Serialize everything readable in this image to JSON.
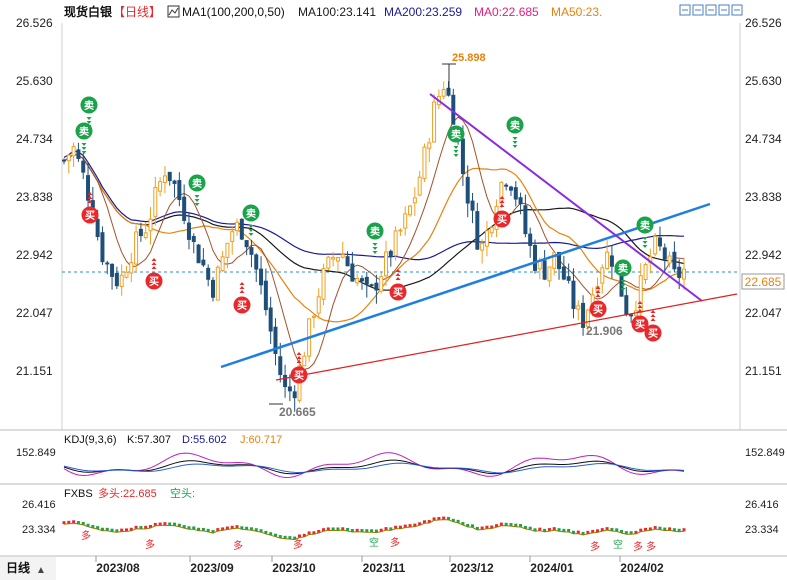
{
  "header": {
    "title": "现货白银",
    "period": "【日线】",
    "ma_params": "MA1(100,200,0,50)",
    "ma_items": [
      {
        "text": "MA100:23.141",
        "color": "#1a1a1a"
      },
      {
        "text": "MA200:23.259",
        "color": "#1a1a99"
      },
      {
        "text": "MA0:22.685",
        "color": "#e0207f"
      },
      {
        "text": "MA50:23.",
        "color": "#e8820c"
      }
    ],
    "tool_icons": [
      "zoom-in-icon",
      "zoom-out-icon",
      "expand-icon",
      "restore-icon",
      "close-icon"
    ]
  },
  "price_axis": {
    "ticks": [
      "26.526",
      "25.630",
      "24.734",
      "23.838",
      "22.942",
      "22.047",
      "21.151"
    ],
    "current": "22.685"
  },
  "annotations": {
    "high_label": "25.898",
    "low_label": "20.665",
    "mid_low_label": "21.906",
    "buy_char": "买",
    "sell_char": "卖"
  },
  "kdj": {
    "label": "KDJ(9,3,6)",
    "k": "K:57.307",
    "d": "D:55.602",
    "j": "J:60.717",
    "axis_tick": "152.849"
  },
  "fxbs": {
    "label": "FXBS",
    "long": "多头:22.685",
    "short": "空头:",
    "axis_ticks": [
      "26.416",
      "23.334"
    ],
    "long_char": "多",
    "short_char": "空"
  },
  "footer": {
    "period_label": "日线",
    "months": [
      "2023/08",
      "2023/09",
      "2023/10",
      "2023/11",
      "2023/12",
      "2024/01",
      "2024/02"
    ]
  },
  "colors": {
    "up": "#e8282b",
    "down": "#1aa34a",
    "candle_up": "#f0a020",
    "candle_down": "#1e4f7a",
    "trend_blue": "#1e7fe0",
    "trend_purple": "#8a2be2",
    "trend_red": "#d22",
    "ma_black": "#1a1a1a",
    "ma_navy": "#1a1a99",
    "ma_orange": "#e8820c"
  },
  "chart_data": [
    {
      "type": "candlestick",
      "title": "现货白银 【日线】",
      "y_axis_ticks": [
        26.526,
        25.63,
        24.734,
        23.838,
        22.942,
        22.047,
        21.151
      ],
      "ylim": [
        20.3,
        26.6
      ],
      "x_axis_ticks": [
        "2023/08",
        "2023/09",
        "2023/10",
        "2023/11",
        "2023/12",
        "2024/01",
        "2024/02"
      ],
      "series": [
        {
          "name": "MA100",
          "value": 23.141
        },
        {
          "name": "MA200",
          "value": 23.259
        },
        {
          "name": "MA0",
          "value": 22.685
        },
        {
          "name": "MA50",
          "value": 23.0
        }
      ],
      "close_path": [
        24.4,
        24.6,
        24.2,
        23.7,
        23.0,
        22.7,
        22.5,
        22.9,
        23.2,
        23.4,
        23.9,
        24.3,
        24.0,
        23.6,
        23.1,
        22.8,
        22.4,
        22.8,
        23.3,
        23.4,
        23.1,
        22.6,
        22.0,
        21.3,
        20.8,
        20.9,
        21.5,
        22.1,
        22.6,
        22.9,
        23.0,
        22.7,
        22.5,
        22.3,
        22.6,
        22.9,
        23.2,
        23.5,
        23.9,
        24.5,
        25.2,
        25.6,
        25.2,
        24.3,
        23.6,
        23.0,
        23.4,
        24.0,
        24.2,
        23.8,
        23.2,
        22.8,
        22.7,
        22.9,
        22.6,
        22.2,
        21.9,
        22.3,
        22.8,
        23.0,
        22.5,
        22.0,
        22.3,
        22.8,
        23.1,
        22.9,
        22.6,
        22.7
      ],
      "markers": {
        "high": 25.898,
        "low": 20.665,
        "swing_low": 21.906,
        "last": 22.685
      }
    },
    {
      "type": "line",
      "title": "KDJ(9,3,6)",
      "series": [
        {
          "name": "K",
          "value": 57.307
        },
        {
          "name": "D",
          "value": 55.602
        },
        {
          "name": "J",
          "value": 60.717
        }
      ],
      "axis_tick": 152.849
    },
    {
      "type": "line",
      "title": "FXBS",
      "series": [
        {
          "name": "多头",
          "value": 22.685
        },
        {
          "name": "空头"
        }
      ],
      "axis_ticks": [
        26.416,
        23.334
      ]
    }
  ]
}
